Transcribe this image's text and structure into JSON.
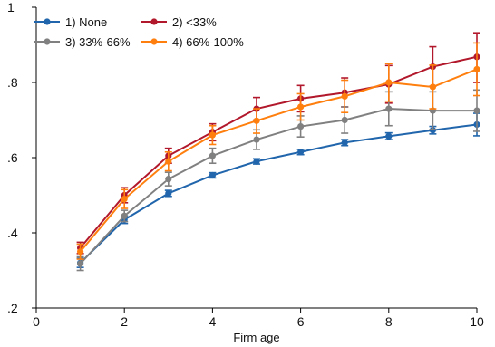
{
  "chart_data": {
    "type": "line",
    "title": "",
    "xlabel": "Firm age",
    "ylabel": "",
    "xlim": [
      0,
      10
    ],
    "ylim": [
      0.2,
      1.0
    ],
    "xticks": [
      0,
      2,
      4,
      6,
      8,
      10
    ],
    "yticks": [
      0.2,
      0.4,
      0.6,
      0.8,
      1.0
    ],
    "ytick_labels": [
      ".2",
      ".4",
      ".6",
      ".8",
      "1"
    ],
    "xtick_labels": [
      "0",
      "2",
      "4",
      "6",
      "8",
      "10"
    ],
    "grid": false,
    "legend_position": "top-left",
    "x": [
      1,
      2,
      3,
      4,
      5,
      6,
      7,
      8,
      9,
      10
    ],
    "series": [
      {
        "name": "1) None",
        "color": "#2166ac",
        "values": [
          0.32,
          0.435,
          0.505,
          0.553,
          0.59,
          0.615,
          0.64,
          0.657,
          0.673,
          0.688
        ],
        "err_low": [
          0.308,
          0.425,
          0.497,
          0.546,
          0.583,
          0.608,
          0.632,
          0.648,
          0.663,
          0.658
        ],
        "err_high": [
          0.332,
          0.445,
          0.513,
          0.56,
          0.597,
          0.622,
          0.648,
          0.666,
          0.683,
          0.718
        ]
      },
      {
        "name": "2) <33%",
        "color": "#b2182b",
        "values": [
          0.36,
          0.5,
          0.605,
          0.668,
          0.73,
          0.757,
          0.773,
          0.795,
          0.842,
          0.868
        ],
        "err_low": [
          0.345,
          0.48,
          0.585,
          0.645,
          0.7,
          0.722,
          0.735,
          0.745,
          0.79,
          0.8
        ],
        "err_high": [
          0.375,
          0.52,
          0.625,
          0.69,
          0.76,
          0.792,
          0.812,
          0.845,
          0.895,
          0.932
        ]
      },
      {
        "name": "3) 33%-66%",
        "color": "#808080",
        "values": [
          0.318,
          0.445,
          0.543,
          0.605,
          0.648,
          0.683,
          0.7,
          0.73,
          0.725,
          0.725
        ],
        "err_low": [
          0.3,
          0.43,
          0.525,
          0.585,
          0.622,
          0.655,
          0.665,
          0.685,
          0.675,
          0.67
        ],
        "err_high": [
          0.336,
          0.46,
          0.561,
          0.625,
          0.674,
          0.711,
          0.735,
          0.775,
          0.775,
          0.78
        ]
      },
      {
        "name": "4) 66%-100%",
        "color": "#ff7f0e",
        "values": [
          0.35,
          0.49,
          0.59,
          0.66,
          0.698,
          0.735,
          0.763,
          0.8,
          0.788,
          0.835
        ],
        "err_low": [
          0.33,
          0.465,
          0.565,
          0.635,
          0.665,
          0.7,
          0.72,
          0.75,
          0.73,
          0.765
        ],
        "err_high": [
          0.37,
          0.515,
          0.615,
          0.685,
          0.73,
          0.77,
          0.806,
          0.85,
          0.846,
          0.905
        ]
      }
    ]
  }
}
